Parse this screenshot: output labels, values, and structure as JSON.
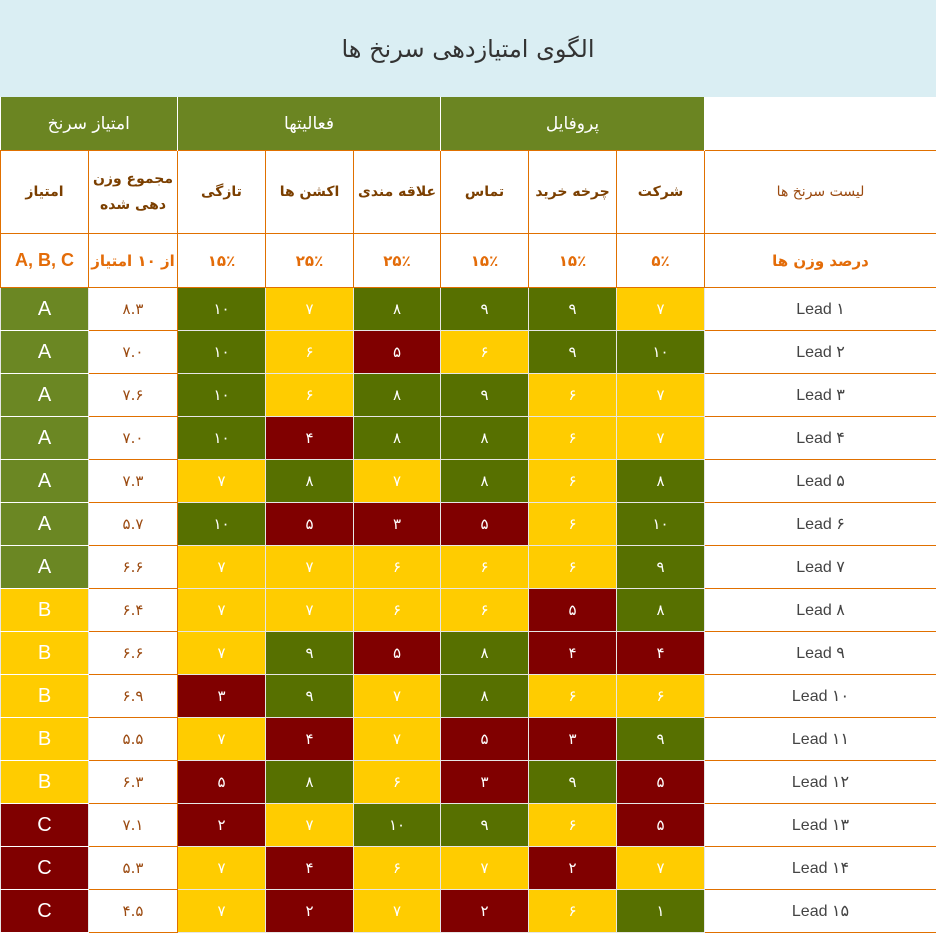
{
  "title": "الگوی امتیازدهی سرنخ ها",
  "colors": {
    "green": "#577000",
    "grade_a": "#6b8723",
    "yellow": "#ffcc00",
    "red": "#800000",
    "header_green": "#6b8522",
    "title_bg": "#daeef3",
    "border": "#e07000"
  },
  "groups": {
    "score": "امتیاز سرنخ",
    "activities": "فعالیتها",
    "profile": "پروفایل"
  },
  "headers": {
    "grade": "امتیاز",
    "total": "مجموع وزن دهی شده",
    "recency": "تازگی",
    "actions": "اکشن ها",
    "interest": "علاقه مندی",
    "contact": "تماس",
    "cycle": "چرخه خرید",
    "company": "شرکت",
    "leads": "لیست سرنخ ها"
  },
  "weights": {
    "grade": "A, B, C",
    "total": "از ۱۰ امتیاز",
    "recency": "۱۵٪",
    "actions": "۲۵٪",
    "interest": "۲۵٪",
    "contact": "۱۵٪",
    "cycle": "۱۵٪",
    "company": "۵٪",
    "leads": "درصد وزن ها"
  },
  "score_columns_order": [
    "recency",
    "actions",
    "interest",
    "contact",
    "cycle",
    "company"
  ],
  "rows": [
    {
      "lead": "Lead ۱",
      "grade": "A",
      "total": "۸.۳",
      "scores": [
        "۱۰",
        "۷",
        "۸",
        "۹",
        "۹",
        "۷"
      ],
      "colors": [
        "green",
        "yellow",
        "green",
        "green",
        "green",
        "yellow"
      ]
    },
    {
      "lead": "Lead ۲",
      "grade": "A",
      "total": "۷.۰",
      "scores": [
        "۱۰",
        "۶",
        "۵",
        "۶",
        "۹",
        "۱۰"
      ],
      "colors": [
        "green",
        "yellow",
        "red",
        "yellow",
        "green",
        "green"
      ]
    },
    {
      "lead": "Lead ۳",
      "grade": "A",
      "total": "۷.۶",
      "scores": [
        "۱۰",
        "۶",
        "۸",
        "۹",
        "۶",
        "۷"
      ],
      "colors": [
        "green",
        "yellow",
        "green",
        "green",
        "yellow",
        "yellow"
      ]
    },
    {
      "lead": "Lead ۴",
      "grade": "A",
      "total": "۷.۰",
      "scores": [
        "۱۰",
        "۴",
        "۸",
        "۸",
        "۶",
        "۷"
      ],
      "colors": [
        "green",
        "red",
        "green",
        "green",
        "yellow",
        "yellow"
      ]
    },
    {
      "lead": "Lead ۵",
      "grade": "A",
      "total": "۷.۳",
      "scores": [
        "۷",
        "۸",
        "۷",
        "۸",
        "۶",
        "۸"
      ],
      "colors": [
        "yellow",
        "green",
        "yellow",
        "green",
        "yellow",
        "green"
      ]
    },
    {
      "lead": "Lead ۶",
      "grade": "A",
      "total": "۵.۷",
      "scores": [
        "۱۰",
        "۵",
        "۳",
        "۵",
        "۶",
        "۱۰"
      ],
      "colors": [
        "green",
        "red",
        "red",
        "red",
        "yellow",
        "green"
      ]
    },
    {
      "lead": "Lead ۷",
      "grade": "A",
      "total": "۶.۶",
      "scores": [
        "۷",
        "۷",
        "۶",
        "۶",
        "۶",
        "۹"
      ],
      "colors": [
        "yellow",
        "yellow",
        "yellow",
        "yellow",
        "yellow",
        "green"
      ]
    },
    {
      "lead": "Lead ۸",
      "grade": "B",
      "total": "۶.۴",
      "scores": [
        "۷",
        "۷",
        "۶",
        "۶",
        "۵",
        "۸"
      ],
      "colors": [
        "yellow",
        "yellow",
        "yellow",
        "yellow",
        "red",
        "green"
      ]
    },
    {
      "lead": "Lead ۹",
      "grade": "B",
      "total": "۶.۶",
      "scores": [
        "۷",
        "۹",
        "۵",
        "۸",
        "۴",
        "۴"
      ],
      "colors": [
        "yellow",
        "green",
        "red",
        "green",
        "red",
        "red"
      ]
    },
    {
      "lead": "Lead ۱۰",
      "grade": "B",
      "total": "۶.۹",
      "scores": [
        "۳",
        "۹",
        "۷",
        "۸",
        "۶",
        "۶"
      ],
      "colors": [
        "red",
        "green",
        "yellow",
        "green",
        "yellow",
        "yellow"
      ]
    },
    {
      "lead": "Lead ۱۱",
      "grade": "B",
      "total": "۵.۵",
      "scores": [
        "۷",
        "۴",
        "۷",
        "۵",
        "۳",
        "۹"
      ],
      "colors": [
        "yellow",
        "red",
        "yellow",
        "red",
        "red",
        "green"
      ]
    },
    {
      "lead": "Lead ۱۲",
      "grade": "B",
      "total": "۶.۳",
      "scores": [
        "۵",
        "۸",
        "۶",
        "۳",
        "۹",
        "۵"
      ],
      "colors": [
        "red",
        "green",
        "yellow",
        "red",
        "green",
        "red"
      ]
    },
    {
      "lead": "Lead ۱۳",
      "grade": "C",
      "total": "۷.۱",
      "scores": [
        "۲",
        "۷",
        "۱۰",
        "۹",
        "۶",
        "۵"
      ],
      "colors": [
        "red",
        "yellow",
        "green",
        "green",
        "yellow",
        "red"
      ]
    },
    {
      "lead": "Lead ۱۴",
      "grade": "C",
      "total": "۵.۳",
      "scores": [
        "۷",
        "۴",
        "۶",
        "۷",
        "۲",
        "۷"
      ],
      "colors": [
        "yellow",
        "red",
        "yellow",
        "yellow",
        "red",
        "yellow"
      ]
    },
    {
      "lead": "Lead ۱۵",
      "grade": "C",
      "total": "۴.۵",
      "scores": [
        "۷",
        "۲",
        "۷",
        "۲",
        "۶",
        "۱"
      ],
      "colors": [
        "yellow",
        "red",
        "yellow",
        "red",
        "yellow",
        "green"
      ]
    }
  ]
}
